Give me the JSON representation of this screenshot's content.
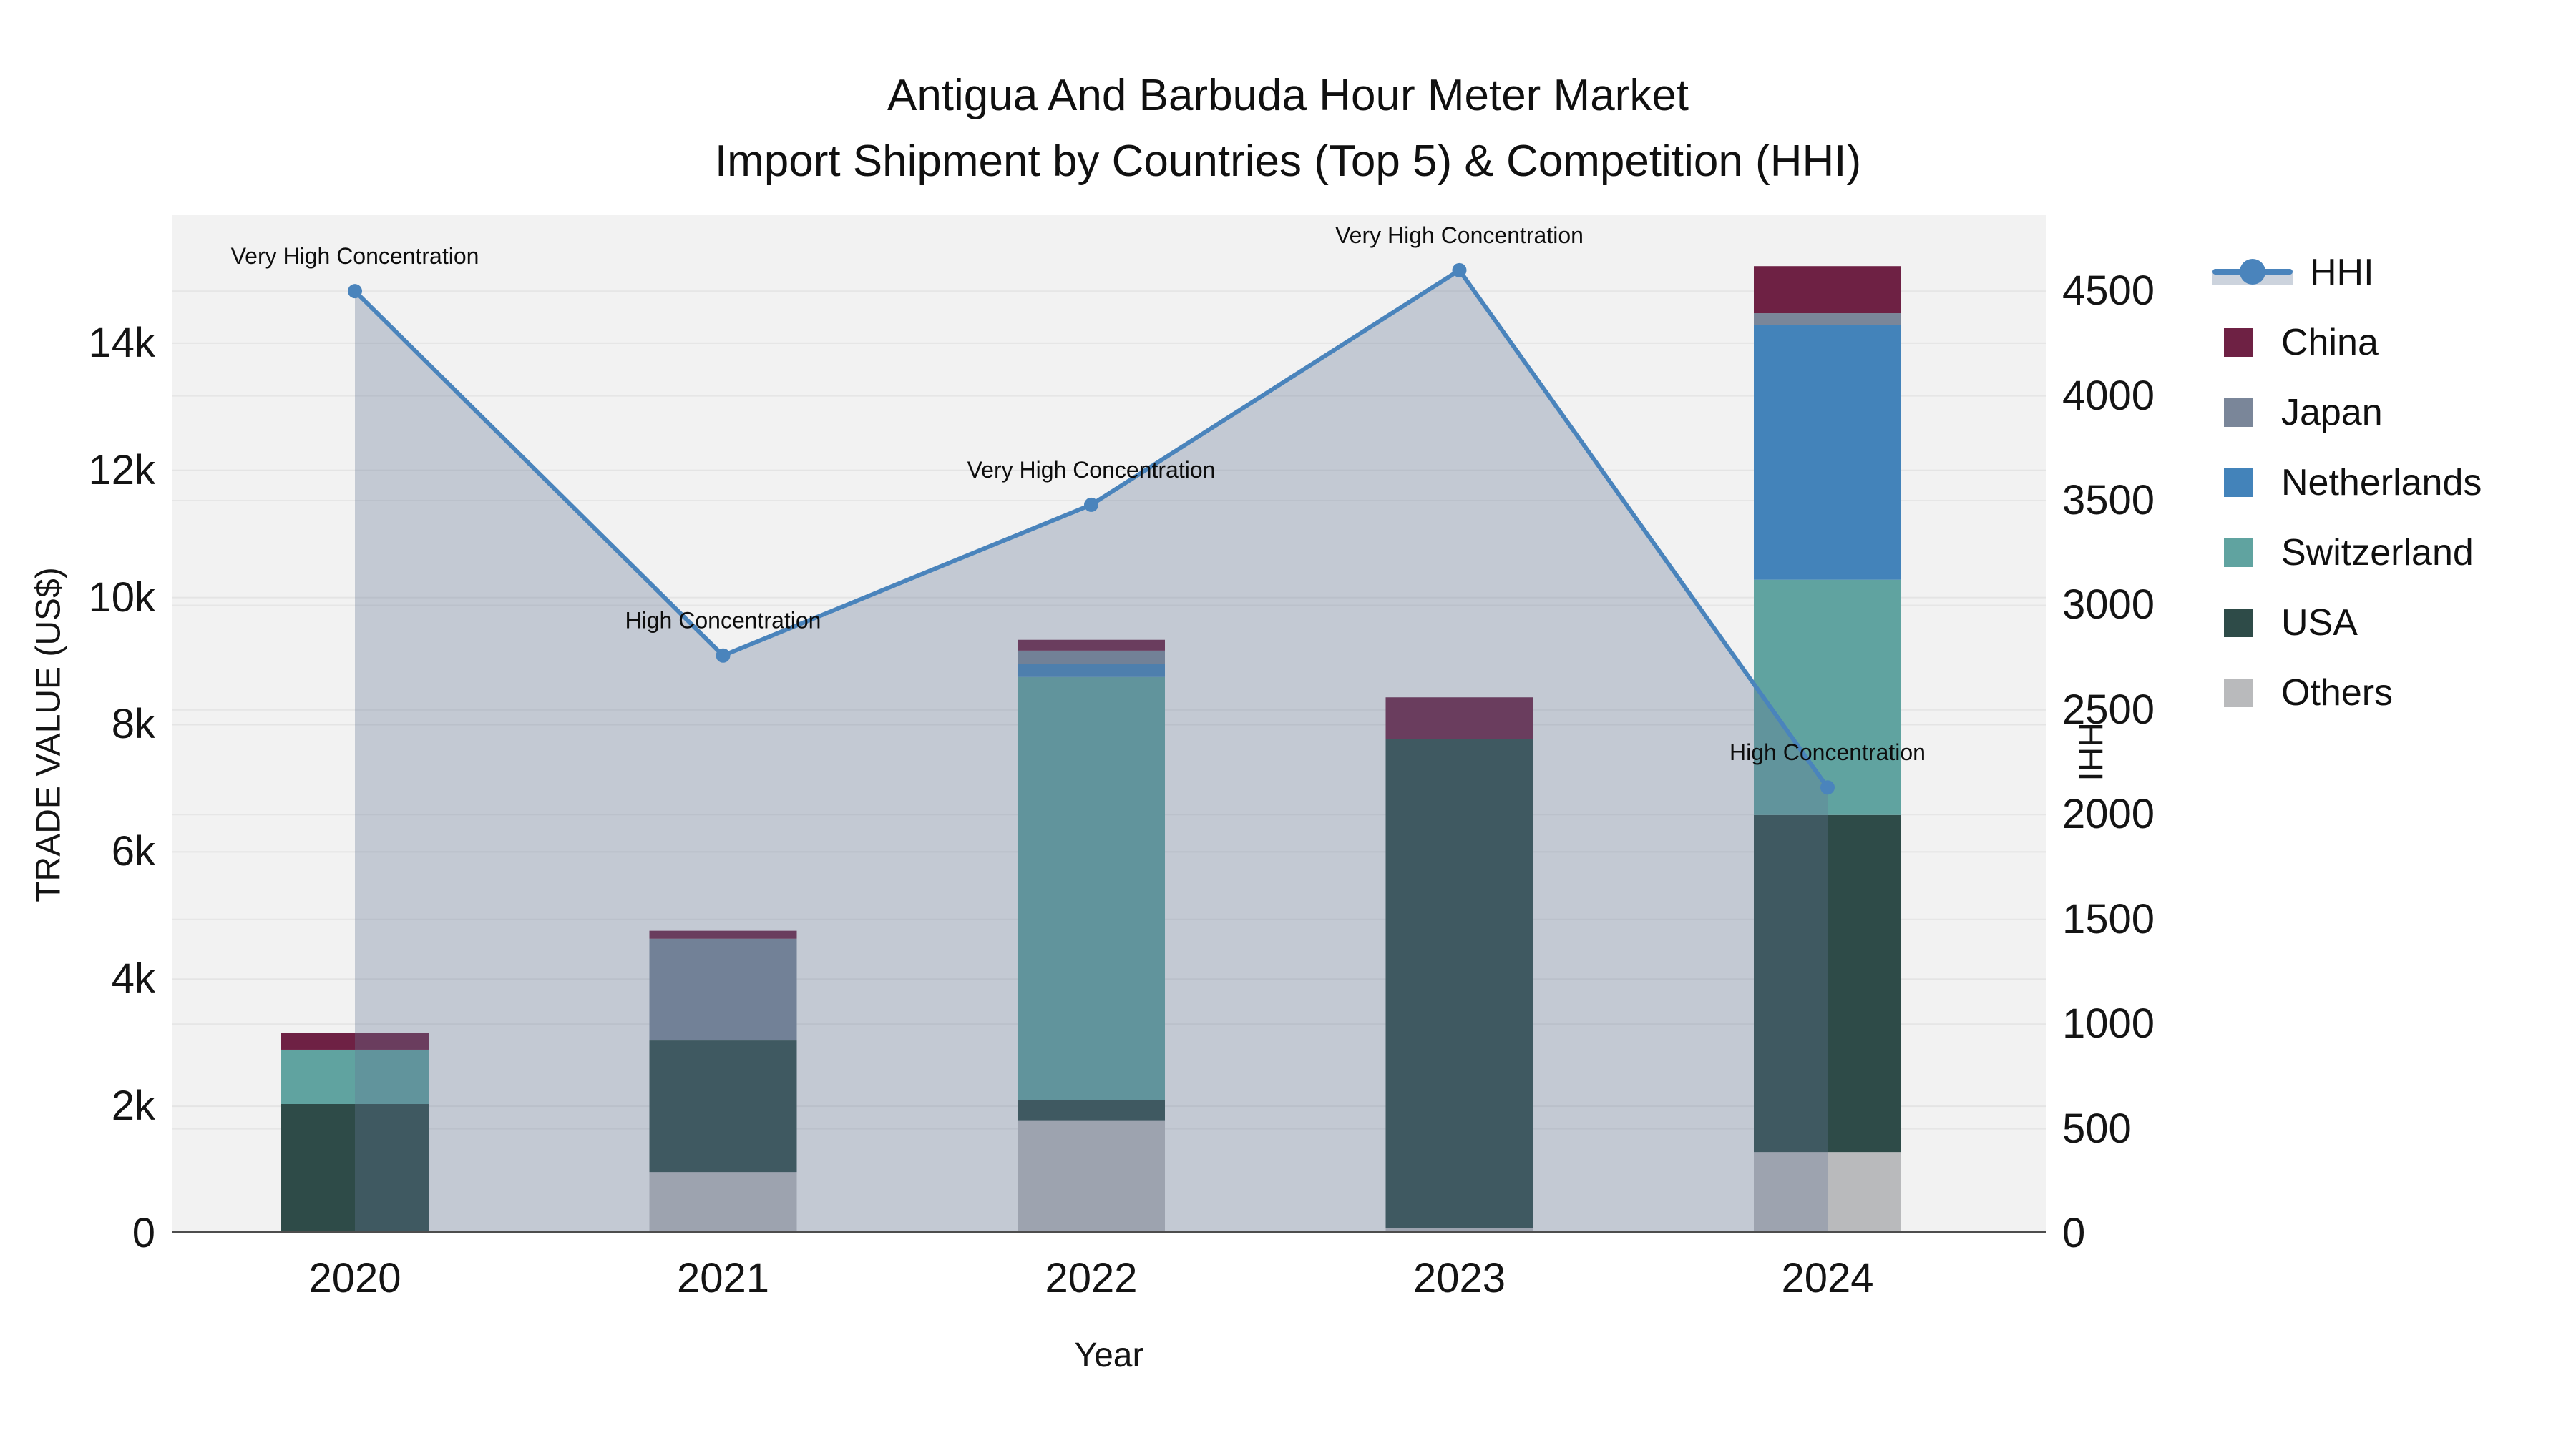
{
  "title": {
    "line1": "Antigua And Barbuda Hour Meter Market",
    "line2": "Import Shipment by Countries (Top 5) & Competition (HHI)"
  },
  "axes": {
    "x": {
      "title": "Year",
      "ticks": [
        "2020",
        "2021",
        "2022",
        "2023",
        "2024"
      ]
    },
    "y_left": {
      "title": "TRADE VALUE (US$)",
      "ticks": [
        {
          "label": "0",
          "value": 0
        },
        {
          "label": "2k",
          "value": 2000
        },
        {
          "label": "4k",
          "value": 4000
        },
        {
          "label": "6k",
          "value": 6000
        },
        {
          "label": "8k",
          "value": 8000
        },
        {
          "label": "10k",
          "value": 10000
        },
        {
          "label": "12k",
          "value": 12000
        },
        {
          "label": "14k",
          "value": 14000
        }
      ],
      "max": 16022
    },
    "y_right": {
      "title": "HHI",
      "ticks": [
        {
          "label": "0",
          "value": 0
        },
        {
          "label": "500",
          "value": 500
        },
        {
          "label": "1000",
          "value": 1000
        },
        {
          "label": "1500",
          "value": 1500
        },
        {
          "label": "2000",
          "value": 2000
        },
        {
          "label": "2500",
          "value": 2500
        },
        {
          "label": "3000",
          "value": 3000
        },
        {
          "label": "3500",
          "value": 3500
        },
        {
          "label": "4000",
          "value": 4000
        },
        {
          "label": "4500",
          "value": 4500
        }
      ],
      "max": 4866
    }
  },
  "legend": {
    "items": [
      {
        "label": "HHI",
        "type": "line",
        "color": "#4a84bc"
      },
      {
        "label": "China",
        "type": "swatch",
        "color": "#6e2144"
      },
      {
        "label": "Japan",
        "type": "swatch",
        "color": "#7a8699"
      },
      {
        "label": "Netherlands",
        "type": "swatch",
        "color": "#4383ba"
      },
      {
        "label": "Switzerland",
        "type": "swatch",
        "color": "#60a3a0"
      },
      {
        "label": "USA",
        "type": "swatch",
        "color": "#2e4b48"
      },
      {
        "label": "Others",
        "type": "swatch",
        "color": "#b9babc"
      }
    ]
  },
  "chart_data": {
    "type": "combo: stacked bar (trade value, left axis) + line with area fill (HHI, right axis)",
    "title": "Antigua And Barbuda Hour Meter Market Import Shipment by Countries (Top 5) & Competition (HHI)",
    "categories": [
      "2020",
      "2021",
      "2022",
      "2023",
      "2024"
    ],
    "bar_stack_order_bottom_to_top": [
      "Others",
      "USA",
      "Switzerland",
      "Netherlands",
      "Japan",
      "China"
    ],
    "series": [
      {
        "name": "China",
        "color": "#6e2144",
        "values": [
          260,
          125,
          170,
          660,
          740
        ]
      },
      {
        "name": "Japan",
        "color": "#7a8699",
        "values": [
          0,
          1600,
          215,
          0,
          180
        ]
      },
      {
        "name": "Netherlands",
        "color": "#4383ba",
        "values": [
          0,
          0,
          200,
          0,
          4010
        ]
      },
      {
        "name": "Switzerland",
        "color": "#60a3a0",
        "values": [
          855,
          0,
          6650,
          0,
          3700
        ]
      },
      {
        "name": "USA",
        "color": "#2e4b48",
        "values": [
          2035,
          2070,
          320,
          7690,
          5300
        ]
      },
      {
        "name": "Others",
        "color": "#b9babc",
        "values": [
          0,
          965,
          1780,
          80,
          1280
        ]
      }
    ],
    "bar_totals": [
      3150,
      4760,
      9335,
      8430,
      15210
    ],
    "hhi": {
      "name": "HHI",
      "color": "#4a84bc",
      "fill_color": "rgba(100,118,150,0.33)",
      "values": [
        4500,
        2760,
        3480,
        4600,
        2130
      ],
      "annotations": [
        "Very High Concentration",
        "High Concentration",
        "Very High Concentration",
        "Very High Concentration",
        "High Concentration"
      ]
    },
    "xlabel": "Year",
    "ylabel_left": "TRADE VALUE (US$)",
    "ylabel_right": "HHI",
    "ylim_left": [
      0,
      16022
    ],
    "ylim_right": [
      0,
      4866
    ],
    "grid": "horizontal only, both axes' ticks",
    "legend_position": "outside top-right"
  }
}
